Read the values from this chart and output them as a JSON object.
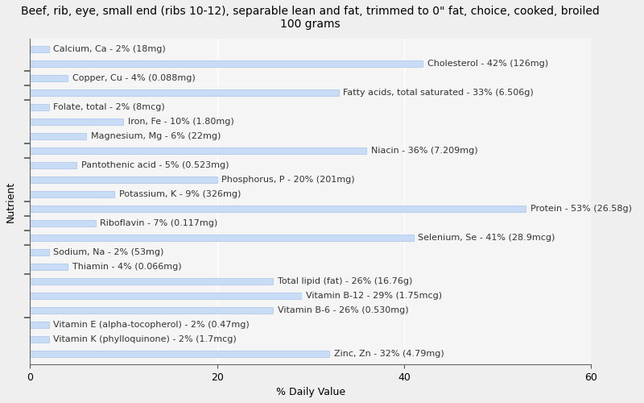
{
  "title": "Beef, rib, eye, small end (ribs 10-12), separable lean and fat, trimmed to 0\" fat, choice, cooked, broiled\n100 grams",
  "xlabel": "% Daily Value",
  "ylabel": "Nutrient",
  "xlim": [
    0,
    60
  ],
  "xticks": [
    0,
    20,
    40,
    60
  ],
  "background_color": "#efefef",
  "plot_bg_color": "#f5f5f5",
  "bar_color": "#c8ddf5",
  "bar_edge_color": "#a8c4e8",
  "nutrients": [
    {
      "label": "Calcium, Ca - 2% (18mg)",
      "value": 2
    },
    {
      "label": "Cholesterol - 42% (126mg)",
      "value": 42
    },
    {
      "label": "Copper, Cu - 4% (0.088mg)",
      "value": 4
    },
    {
      "label": "Fatty acids, total saturated - 33% (6.506g)",
      "value": 33
    },
    {
      "label": "Folate, total - 2% (8mcg)",
      "value": 2
    },
    {
      "label": "Iron, Fe - 10% (1.80mg)",
      "value": 10
    },
    {
      "label": "Magnesium, Mg - 6% (22mg)",
      "value": 6
    },
    {
      "label": "Niacin - 36% (7.209mg)",
      "value": 36
    },
    {
      "label": "Pantothenic acid - 5% (0.523mg)",
      "value": 5
    },
    {
      "label": "Phosphorus, P - 20% (201mg)",
      "value": 20
    },
    {
      "label": "Potassium, K - 9% (326mg)",
      "value": 9
    },
    {
      "label": "Protein - 53% (26.58g)",
      "value": 53
    },
    {
      "label": "Riboflavin - 7% (0.117mg)",
      "value": 7
    },
    {
      "label": "Selenium, Se - 41% (28.9mcg)",
      "value": 41
    },
    {
      "label": "Sodium, Na - 2% (53mg)",
      "value": 2
    },
    {
      "label": "Thiamin - 4% (0.066mg)",
      "value": 4
    },
    {
      "label": "Total lipid (fat) - 26% (16.76g)",
      "value": 26
    },
    {
      "label": "Vitamin B-12 - 29% (1.75mcg)",
      "value": 29
    },
    {
      "label": "Vitamin B-6 - 26% (0.530mg)",
      "value": 26
    },
    {
      "label": "Vitamin E (alpha-tocopherol) - 2% (0.47mg)",
      "value": 2
    },
    {
      "label": "Vitamin K (phylloquinone) - 2% (1.7mcg)",
      "value": 2
    },
    {
      "label": "Zinc, Zn - 32% (4.79mg)",
      "value": 32
    }
  ],
  "title_fontsize": 10,
  "axis_label_fontsize": 9,
  "tick_fontsize": 9,
  "bar_label_fontsize": 8
}
